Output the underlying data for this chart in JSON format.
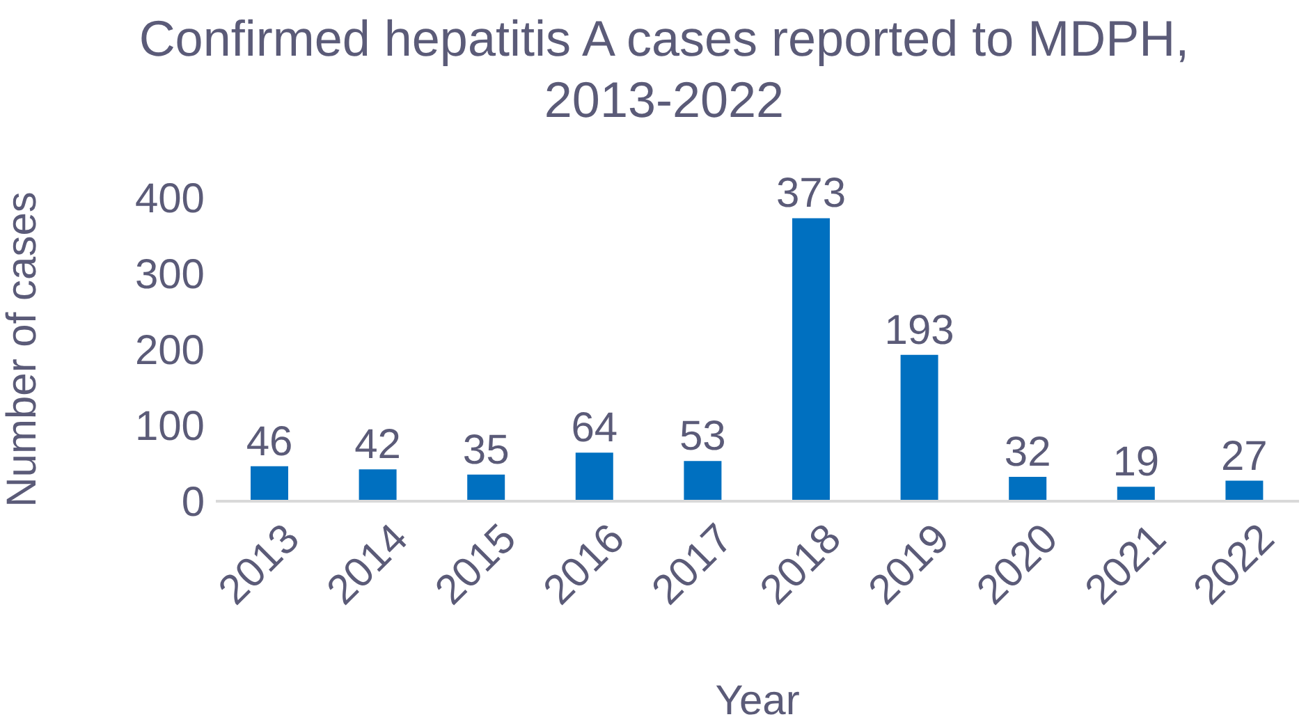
{
  "chart_data": {
    "type": "bar",
    "title": "Confirmed hepatitis A cases reported to MDPH, 2013-2022",
    "xlabel": "Year",
    "ylabel": "Number of cases",
    "categories": [
      "2013",
      "2014",
      "2015",
      "2016",
      "2017",
      "2018",
      "2019",
      "2020",
      "2021",
      "2022"
    ],
    "values": [
      46,
      42,
      35,
      64,
      53,
      373,
      193,
      32,
      19,
      27
    ],
    "color": "#0070c0",
    "ylim": [
      0,
      400
    ],
    "yticks": [
      0,
      100,
      200,
      300,
      400
    ],
    "data_labels": true
  }
}
